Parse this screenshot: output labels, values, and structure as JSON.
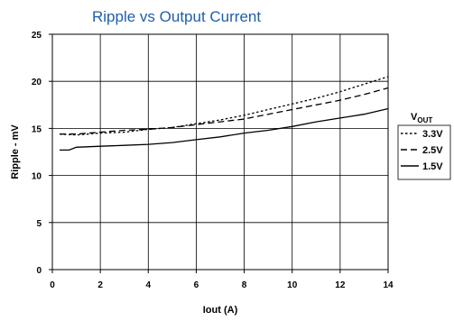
{
  "chart_data": {
    "type": "line",
    "title": "Ripple vs Output Current",
    "xlabel": "Iout  (A)",
    "ylabel": "Ripple - mV",
    "xlim": [
      0,
      14
    ],
    "ylim": [
      0,
      25
    ],
    "xticks": [
      0,
      2,
      4,
      6,
      8,
      10,
      12,
      14
    ],
    "yticks": [
      0,
      5,
      10,
      15,
      20,
      25
    ],
    "xtick_labels": [
      "0",
      "2",
      "4",
      "6",
      "8",
      "10",
      "12",
      "14"
    ],
    "ytick_labels": [
      "0",
      "5",
      "10",
      "15",
      "20",
      "25"
    ],
    "grid": true,
    "legend": {
      "position": "right",
      "title_main": "V",
      "title_sub": "OUT"
    },
    "series": [
      {
        "name": "3.3V",
        "style": "dotted",
        "x": [
          0.3,
          1,
          2,
          3,
          4,
          5,
          6,
          7,
          8,
          9,
          10,
          11,
          12,
          13,
          14
        ],
        "y": [
          14.4,
          14.3,
          14.5,
          14.6,
          14.9,
          15.1,
          15.5,
          15.9,
          16.4,
          17.0,
          17.6,
          18.2,
          18.9,
          19.7,
          20.5
        ]
      },
      {
        "name": "2.5V",
        "style": "dashed",
        "x": [
          0.3,
          1,
          2,
          3,
          4,
          5,
          6,
          7,
          8,
          9,
          10,
          11,
          12,
          13,
          14
        ],
        "y": [
          14.4,
          14.4,
          14.6,
          14.8,
          14.9,
          15.1,
          15.4,
          15.7,
          16.0,
          16.5,
          17.0,
          17.5,
          18.0,
          18.6,
          19.3
        ]
      },
      {
        "name": "1.5V",
        "style": "solid",
        "x": [
          0.3,
          0.7,
          1,
          2,
          3,
          4,
          5,
          6,
          7,
          8,
          9,
          10,
          11,
          12,
          13,
          14
        ],
        "y": [
          12.7,
          12.7,
          13.0,
          13.1,
          13.2,
          13.3,
          13.5,
          13.8,
          14.1,
          14.5,
          14.8,
          15.2,
          15.7,
          16.1,
          16.5,
          17.1
        ]
      }
    ]
  }
}
